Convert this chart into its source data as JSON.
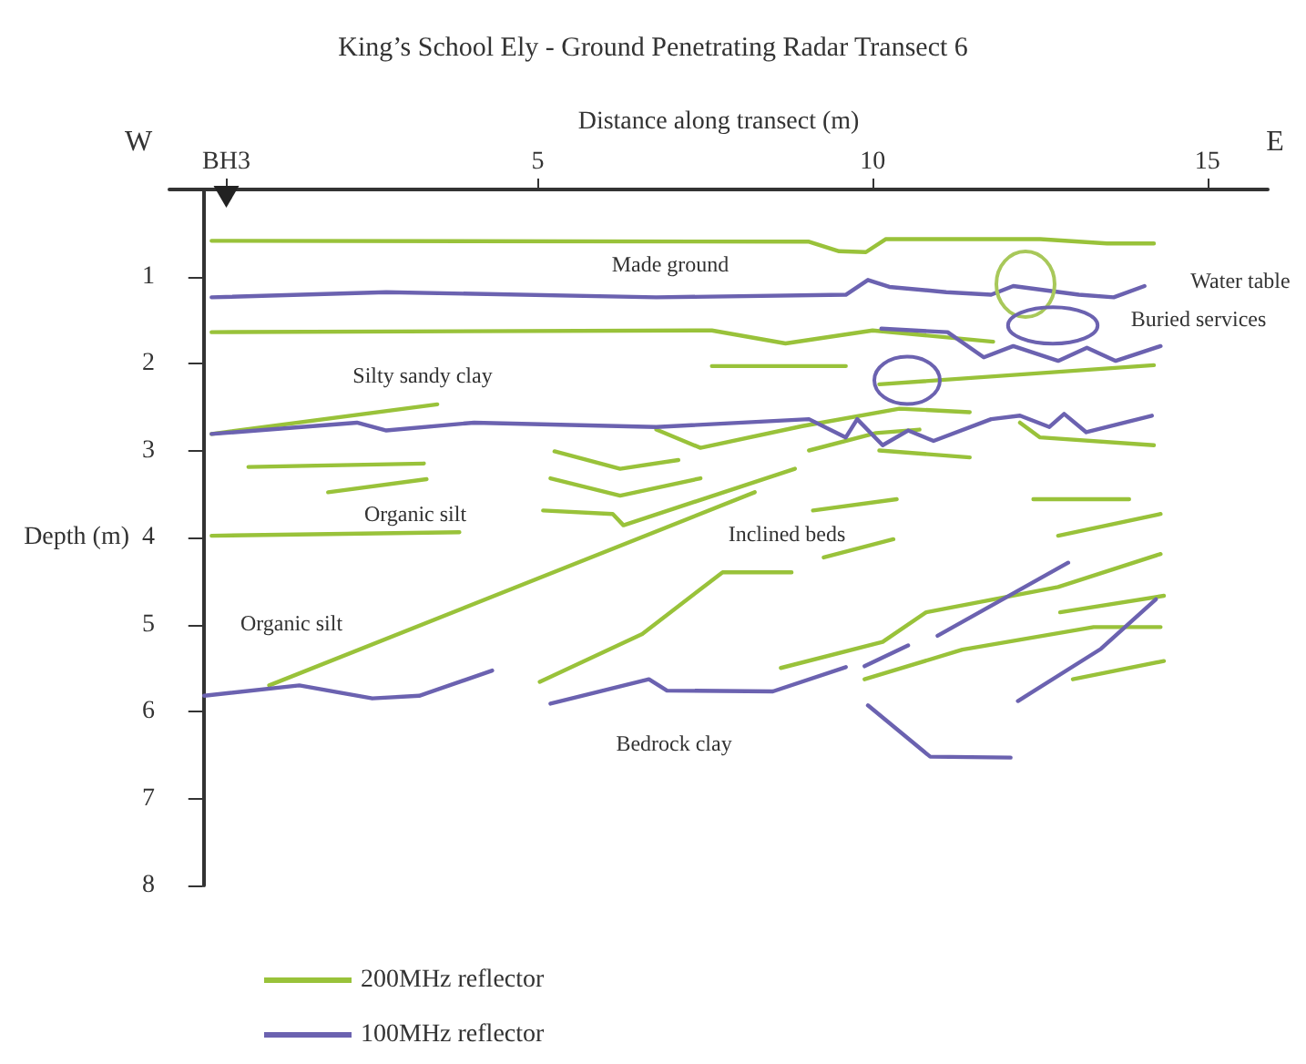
{
  "chart_data": {
    "type": "line",
    "title": "King’s School Ely - Ground Penetrating Radar Transect 6",
    "xlabel": "Distance along transect (m)",
    "ylabel": "Depth (m)",
    "xlim": [
      -0.5,
      15.9
    ],
    "ylim": [
      8,
      0
    ],
    "xticks": [
      {
        "value": 0.35,
        "label": "BH3"
      },
      5,
      10,
      15
    ],
    "yticks": [
      1,
      2,
      3,
      4,
      5,
      6,
      7,
      8
    ],
    "grid": false,
    "legend": "bottom left",
    "marker": "none",
    "line_style": "solid",
    "series": [
      {
        "name": "200MHz reflector",
        "color": "#99c23a",
        "x": [
          0.13,
          9.05,
          9.5,
          9.9,
          10.2,
          12.5,
          13.5,
          14.2,
          null,
          0.13,
          7.6,
          8.7,
          10.0,
          11.8,
          null,
          7.6,
          9.6,
          null,
          10.1,
          14.2,
          null,
          0.13,
          3.5,
          null,
          6.77,
          7.43,
          8.95,
          10.4,
          11.45,
          null,
          9.05,
          10.05,
          10.7,
          null,
          10.1,
          11.45,
          null,
          12.2,
          12.5,
          14.2,
          null,
          0.68,
          3.3,
          null,
          1.87,
          3.34,
          null,
          0.13,
          3.83,
          null,
          5.25,
          6.23,
          7.1,
          null,
          5.19,
          6.23,
          7.43,
          null,
          5.08,
          6.12,
          6.28,
          8.84,
          null,
          0.99,
          8.24,
          null,
          5.03,
          6.56,
          7.76,
          8.79,
          null,
          9.11,
          10.36,
          null,
          9.27,
          10.31,
          null,
          12.4,
          13.83,
          null,
          12.77,
          14.3,
          null,
          8.63,
          10.15,
          10.8,
          12.77,
          14.3,
          null,
          9.88,
          11.34,
          13.3,
          14.3,
          null,
          12.8,
          14.35,
          null,
          12.99,
          14.35
        ],
        "values": [
          0.59,
          0.6,
          0.71,
          0.72,
          0.57,
          0.57,
          0.62,
          0.62,
          null,
          1.64,
          1.62,
          1.77,
          1.62,
          1.75,
          null,
          2.03,
          2.03,
          null,
          2.24,
          2.02,
          null,
          2.81,
          2.47,
          null,
          2.76,
          2.97,
          2.72,
          2.52,
          2.56,
          null,
          3.0,
          2.8,
          2.76,
          null,
          3.0,
          3.08,
          null,
          2.68,
          2.85,
          2.94,
          null,
          3.19,
          3.15,
          null,
          3.48,
          3.33,
          null,
          3.98,
          3.94,
          null,
          3.01,
          3.21,
          3.11,
          null,
          3.32,
          3.52,
          3.32,
          null,
          3.69,
          3.73,
          3.86,
          3.21,
          null,
          5.7,
          3.48,
          null,
          5.66,
          5.11,
          4.4,
          4.4,
          null,
          3.69,
          3.56,
          null,
          4.23,
          4.02,
          null,
          3.56,
          3.56,
          null,
          3.98,
          3.73,
          null,
          5.5,
          5.2,
          4.86,
          4.57,
          4.19,
          null,
          5.63,
          5.29,
          5.03,
          5.03,
          null,
          4.86,
          4.67,
          null,
          5.63,
          5.42
        ]
      },
      {
        "name": "100MHz reflector",
        "color": "#6b62b0",
        "x": [
          0.13,
          2.74,
          6.77,
          9.6,
          9.93,
          10.25,
          11.1,
          11.77,
          12.1,
          13.08,
          13.6,
          14.06,
          null,
          10.13,
          11.12,
          11.66,
          12.1,
          12.77,
          13.2,
          13.63,
          14.3,
          null,
          0.13,
          2.3,
          2.74,
          4.05,
          6.77,
          9.05,
          9.6,
          9.77,
          10.15,
          10.53,
          10.91,
          11.77,
          12.2,
          12.64,
          12.86,
          13.19,
          14.17,
          null,
          0.02,
          1.44,
          2.53,
          3.23,
          4.32,
          null,
          5.19,
          6.66,
          6.93,
          8.51,
          9.6,
          null,
          9.88,
          10.53,
          null,
          10.97,
          12.92,
          null,
          12.17,
          13.41,
          14.23,
          null,
          9.93,
          10.86,
          12.06
        ],
        "values": [
          1.24,
          1.18,
          1.24,
          1.21,
          1.04,
          1.12,
          1.18,
          1.21,
          1.11,
          1.21,
          1.24,
          1.11,
          null,
          1.6,
          1.64,
          1.93,
          1.8,
          1.97,
          1.82,
          1.97,
          1.8,
          null,
          2.81,
          2.68,
          2.77,
          2.68,
          2.73,
          2.64,
          2.85,
          2.64,
          2.94,
          2.77,
          2.89,
          2.64,
          2.6,
          2.73,
          2.58,
          2.79,
          2.6,
          null,
          5.82,
          5.7,
          5.85,
          5.82,
          5.53,
          null,
          5.91,
          5.63,
          5.76,
          5.77,
          5.49,
          null,
          5.48,
          5.24,
          null,
          5.13,
          4.29,
          null,
          5.88,
          5.28,
          4.71,
          null,
          5.93,
          6.52,
          6.53
        ]
      }
    ],
    "annotations": [
      "W",
      "E",
      "Made ground",
      "Water table",
      "Buried services",
      "Silty sandy clay",
      "Organic silt",
      "Inclined beds",
      "Organic silt",
      "Bedrock clay"
    ]
  }
}
